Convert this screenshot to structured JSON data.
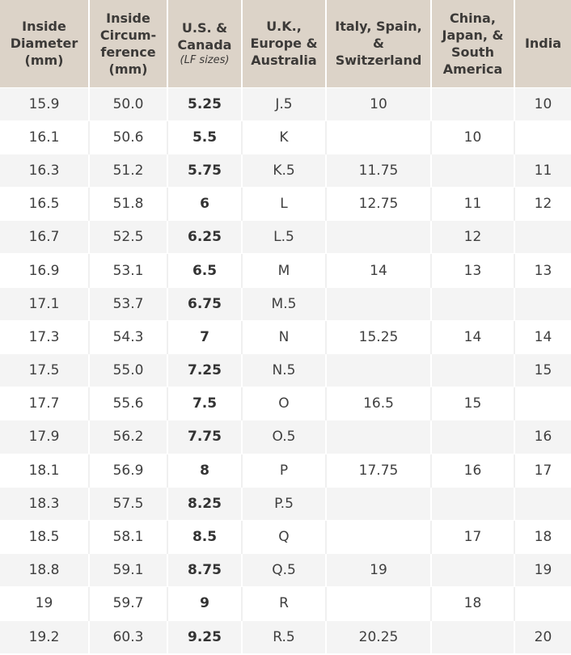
{
  "headers": [
    {
      "lines": [
        "Inside",
        "Diameter",
        "(mm)"
      ]
    },
    {
      "lines": [
        "Inside",
        "Circum-",
        "ference",
        "(mm)"
      ]
    },
    {
      "lines": [
        "U.S. &",
        "Canada"
      ],
      "sub": "(LF sizes)"
    },
    {
      "lines": [
        "U.K.,",
        "Europe &",
        "Australia"
      ]
    },
    {
      "lines": [
        "Italy, Spain,",
        "&",
        "Switzerland"
      ]
    },
    {
      "lines": [
        "China,",
        "Japan, &",
        "South",
        "America"
      ]
    },
    {
      "lines": [
        "India"
      ]
    }
  ],
  "rows": [
    [
      "15.9",
      "50.0",
      "5.25",
      "J.5",
      "10",
      "",
      "10"
    ],
    [
      "16.1",
      "50.6",
      "5.5",
      "K",
      "",
      "10",
      ""
    ],
    [
      "16.3",
      "51.2",
      "5.75",
      "K.5",
      "11.75",
      "",
      "11"
    ],
    [
      "16.5",
      "51.8",
      "6",
      "L",
      "12.75",
      "11",
      "12"
    ],
    [
      "16.7",
      "52.5",
      "6.25",
      "L.5",
      "",
      "12",
      ""
    ],
    [
      "16.9",
      "53.1",
      "6.5",
      "M",
      "14",
      "13",
      "13"
    ],
    [
      "17.1",
      "53.7",
      "6.75",
      "M.5",
      "",
      "",
      ""
    ],
    [
      "17.3",
      "54.3",
      "7",
      "N",
      "15.25",
      "14",
      "14"
    ],
    [
      "17.5",
      "55.0",
      "7.25",
      "N.5",
      "",
      "",
      "15"
    ],
    [
      "17.7",
      "55.6",
      "7.5",
      "O",
      "16.5",
      "15",
      ""
    ],
    [
      "17.9",
      "56.2",
      "7.75",
      "O.5",
      "",
      "",
      "16"
    ],
    [
      "18.1",
      "56.9",
      "8",
      "P",
      "17.75",
      "16",
      "17"
    ],
    [
      "18.3",
      "57.5",
      "8.25",
      "P.5",
      "",
      "",
      ""
    ],
    [
      "18.5",
      "58.1",
      "8.5",
      "Q",
      "",
      "17",
      "18"
    ],
    [
      "18.8",
      "59.1",
      "8.75",
      "Q.5",
      "19",
      "",
      "19"
    ],
    [
      "19",
      "59.7",
      "9",
      "R",
      "",
      "18",
      ""
    ],
    [
      "19.2",
      "60.3",
      "9.25",
      "R.5",
      "20.25",
      "",
      "20"
    ]
  ]
}
